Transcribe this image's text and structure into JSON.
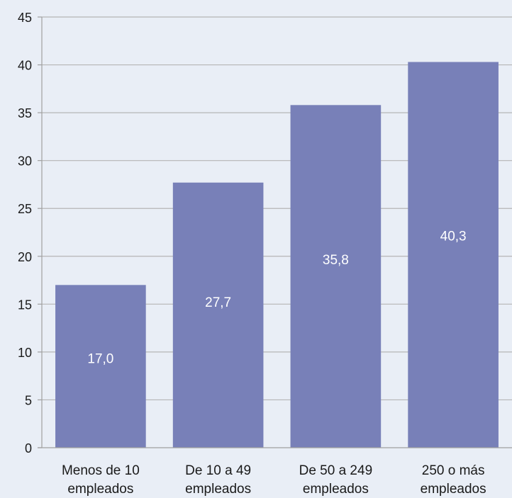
{
  "chart_data": {
    "type": "bar",
    "categories": [
      [
        "Menos de 10",
        "empleados"
      ],
      [
        "De 10 a 49",
        "empleados"
      ],
      [
        "De 50 a 249",
        "empleados"
      ],
      [
        "250 o más",
        "empleados"
      ]
    ],
    "values": [
      17.0,
      27.7,
      35.8,
      40.3
    ],
    "data_labels": [
      "17,0",
      "27,7",
      "35,8",
      "40,3"
    ],
    "ylim": [
      0,
      45
    ],
    "yticks": [
      0,
      5,
      10,
      15,
      20,
      25,
      30,
      35,
      40,
      45
    ],
    "grid": true,
    "colors": {
      "background": "#e9eef6",
      "bar": "#7880b8",
      "grid": "#b5b5b5",
      "axis": "#a0a0a0"
    }
  }
}
